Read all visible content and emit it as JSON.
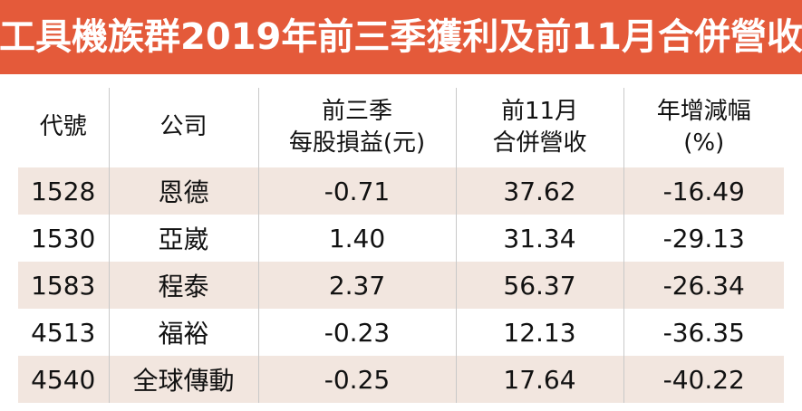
{
  "title": "工具機族群2019年前三季獲利及前11月合併營收",
  "colors": {
    "title_bar": "#e45a3a",
    "row_shade": "#f2e6df"
  },
  "table": {
    "headers": [
      {
        "line1": "代號",
        "line2": ""
      },
      {
        "line1": "公司",
        "line2": ""
      },
      {
        "line1": "前三季",
        "line2": "每股損益(元)"
      },
      {
        "line1": "前11月",
        "line2": "合併營收"
      },
      {
        "line1": "年增減幅",
        "line2": "(%)"
      }
    ],
    "rows": [
      {
        "code": "1528",
        "company": "恩德",
        "eps": "-0.71",
        "revenue": "37.62",
        "growth": "-16.49"
      },
      {
        "code": "1530",
        "company": "亞崴",
        "eps": "1.40",
        "revenue": "31.34",
        "growth": "-29.13"
      },
      {
        "code": "1583",
        "company": "程泰",
        "eps": "2.37",
        "revenue": "56.37",
        "growth": "-26.34"
      },
      {
        "code": "4513",
        "company": "福裕",
        "eps": "-0.23",
        "revenue": "12.13",
        "growth": "-36.35"
      },
      {
        "code": "4540",
        "company": "全球傳動",
        "eps": "-0.25",
        "revenue": "17.64",
        "growth": "-40.22"
      }
    ]
  }
}
